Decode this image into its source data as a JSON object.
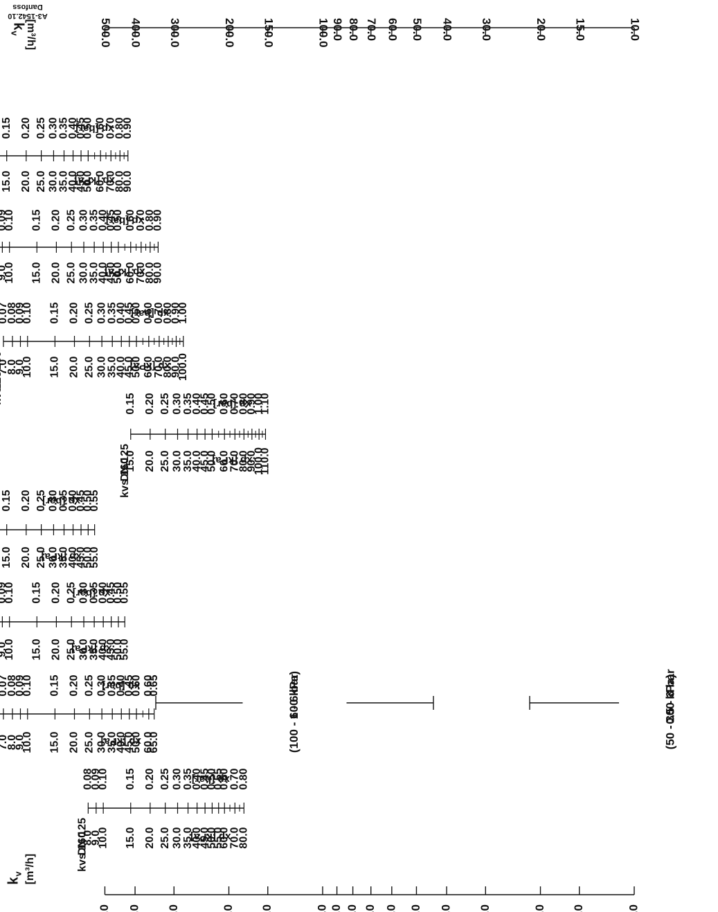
{
  "doc_code": "Danfoss\nA3-1542.10",
  "kv_axis": {
    "label_symbol": "k",
    "label_sub": "v",
    "unit": "[m³/h]",
    "ticks": [
      "500.0",
      "400.0",
      "300.0",
      "200.0",
      "150.0",
      "100.0",
      "90.0",
      "80.0",
      "70.0",
      "60.0",
      "50.0",
      "40.0",
      "30.0",
      "20.0",
      "15.0",
      "10.0"
    ]
  },
  "scale_labels": {
    "kpa": "xp [kPa]",
    "bar": "xp [bar]"
  },
  "groups": [
    {
      "range_bar": "0.5 - 3 bar",
      "range_kpa": "(50 - 300 kPa)"
    },
    {
      "range_bar": "1 - 6 bar",
      "range_kpa": "(100 - 600 kPa)"
    }
  ],
  "valves": [
    {
      "dn": "DN 125",
      "kvs": "kvs 160",
      "kvs_value": 160,
      "kpa": [
        "80.0",
        "70.0",
        "60.0",
        "55.0",
        "50.0",
        "45.0",
        "40.0",
        "35.0",
        "30.0",
        "25.0",
        "20.0",
        "15.0",
        "10.0",
        "9.0",
        "8.0"
      ],
      "bar": [
        "0.80",
        "0.70",
        "0.60",
        "0.55",
        "0.50",
        "0.45",
        "0.40",
        "0.35",
        "0.30",
        "0.25",
        "0.20",
        "0.15",
        "0.10",
        "0.09",
        "0.08"
      ]
    },
    {
      "dn": "DN 150",
      "kvs": "kvs 280",
      "kvs_value": 280,
      "kpa": [
        "65.0",
        "60.0",
        "50.0",
        "45.0",
        "40.0",
        "35.0",
        "30.0",
        "25.0",
        "20.0",
        "15.0",
        "10.0",
        "9.0",
        "8.0",
        "7.0",
        "6.0",
        "5.0"
      ],
      "bar": [
        "0.65",
        "0.60",
        "0.50",
        "0.45",
        "0.40",
        "0.35",
        "0.30",
        "0.25",
        "0.20",
        "0.15",
        "0.10",
        "0.09",
        "0.08",
        "0.07",
        "0.06",
        "0.05"
      ]
    },
    {
      "dn": "DN 200",
      "kvs": "kvs 320",
      "kvs_value": 320,
      "kpa": [
        "55.0",
        "50.0",
        "45.0",
        "40.0",
        "35.0",
        "30.0",
        "25.0",
        "20.0",
        "15.0",
        "10.0",
        "9.0",
        "8.0",
        "7.0",
        "6.0",
        "5.0"
      ],
      "bar": [
        "0.55",
        "0.50",
        "0.45",
        "0.40",
        "0.35",
        "0.30",
        "0.25",
        "0.20",
        "0.15",
        "0.10",
        "0.09",
        "0.08",
        "0.07",
        "0.06",
        "0.05"
      ]
    },
    {
      "dn": "DN 250",
      "kvs": "kvs 400",
      "kvs_value": 400,
      "kpa": [
        "55.0",
        "50.0",
        "45.0",
        "40.0",
        "35.0",
        "30.0",
        "25.0",
        "20.0",
        "15.0",
        "10.0",
        "9.0",
        "8.0",
        "7.0",
        "6.0",
        "5.0"
      ],
      "bar": [
        "0.55",
        "0.50",
        "0.45",
        "0.40",
        "0.35",
        "0.30",
        "0.25",
        "0.20",
        "0.15",
        "0.10",
        "0.09",
        "0.08",
        "0.07",
        "0.06",
        "0.05"
      ]
    },
    {
      "dn": "DN 125",
      "kvs": "kvs 160",
      "kvs_value": 160,
      "kpa": [
        "110.0",
        "100.0",
        "90.0",
        "80.0",
        "70.0",
        "60.0",
        "50.0",
        "45.0",
        "40.0",
        "35.0",
        "30.0",
        "25.0",
        "20.0",
        "15.0"
      ],
      "bar": [
        "1.10",
        "1.00",
        "0.90",
        "0.80",
        "0.70",
        "0.60",
        "0.50",
        "0.45",
        "0.40",
        "0.35",
        "0.30",
        "0.25",
        "0.20",
        "0.15"
      ]
    },
    {
      "dn": "DN 150",
      "kvs": "kvs 280",
      "kvs_value": 280,
      "kpa": [
        "100.0",
        "90.0",
        "80.0",
        "70.0",
        "60.0",
        "50.0",
        "45.0",
        "40.0",
        "35.0",
        "30.0",
        "25.0",
        "20.0",
        "15.0",
        "10.0",
        "9.0",
        "8.0",
        "7.0"
      ],
      "bar": [
        "1.00",
        "0.90",
        "0.80",
        "0.70",
        "0.60",
        "0.50",
        "0.45",
        "0.40",
        "0.35",
        "0.30",
        "0.25",
        "0.20",
        "0.15",
        "0.10",
        "0.09",
        "0.08",
        "0.07"
      ]
    },
    {
      "dn": "DN 200",
      "kvs": "kvs 320",
      "kvs_value": 320,
      "kpa": [
        "90.0",
        "80.0",
        "70.0",
        "60.0",
        "50.0",
        "45.0",
        "40.0",
        "35.0",
        "30.0",
        "25.0",
        "20.0",
        "15.0",
        "10.0",
        "9.0",
        "8.0",
        "7.0"
      ],
      "bar": [
        "0.90",
        "0.80",
        "0.70",
        "0.60",
        "0.50",
        "0.45",
        "0.40",
        "0.35",
        "0.30",
        "0.25",
        "0.20",
        "0.15",
        "0.10",
        "0.09",
        "0.08",
        "0.07"
      ]
    },
    {
      "dn": "DN 250",
      "kvs": "kvs 400",
      "kvs_value": 400,
      "kpa": [
        "90.0",
        "80.0",
        "70.0",
        "60.0",
        "50.0",
        "45.0",
        "40.0",
        "35.0",
        "30.0",
        "25.0",
        "20.0",
        "15.0",
        "10.0",
        "9.0",
        "8.0",
        "7.0"
      ],
      "bar": [
        "0.90",
        "0.80",
        "0.70",
        "0.60",
        "0.50",
        "0.45",
        "0.40",
        "0.35",
        "0.30",
        "0.25",
        "0.20",
        "0.15",
        "0.10",
        "0.09",
        "0.08",
        "0.07"
      ]
    }
  ]
}
